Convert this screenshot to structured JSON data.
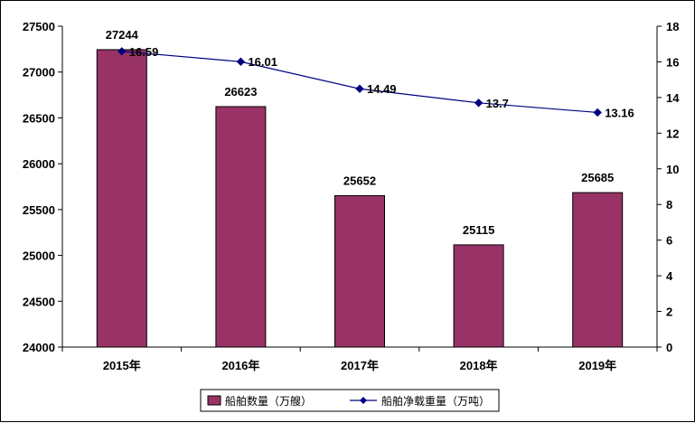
{
  "chart_data": {
    "type": "bar+line",
    "categories": [
      "2015年",
      "2016年",
      "2017年",
      "2018年",
      "2019年"
    ],
    "series": [
      {
        "name": "船舶数量（万艘）",
        "type": "bar",
        "axis": "left",
        "color": "#993366",
        "values": [
          27244,
          26623,
          25652,
          25115,
          25685
        ]
      },
      {
        "name": "船舶净载重量（万吨）",
        "type": "line",
        "axis": "right",
        "color": "#000080",
        "values": [
          16.59,
          16.01,
          14.49,
          13.7,
          13.16
        ]
      }
    ],
    "bar_labels": [
      "27244",
      "26623",
      "25652",
      "25115",
      "25685"
    ],
    "line_labels": [
      "16.59",
      "16.01",
      "14.49",
      "13.7",
      "13.16"
    ],
    "y_left": {
      "min": 24000,
      "max": 27500,
      "ticks": [
        "24000",
        "24500",
        "25000",
        "25500",
        "26000",
        "26500",
        "27000",
        "27500"
      ]
    },
    "y_right": {
      "min": 0,
      "max": 18,
      "ticks": [
        "0",
        "2",
        "4",
        "6",
        "8",
        "10",
        "12",
        "14",
        "16",
        "18"
      ]
    },
    "grid": false,
    "legend_position": "bottom"
  }
}
